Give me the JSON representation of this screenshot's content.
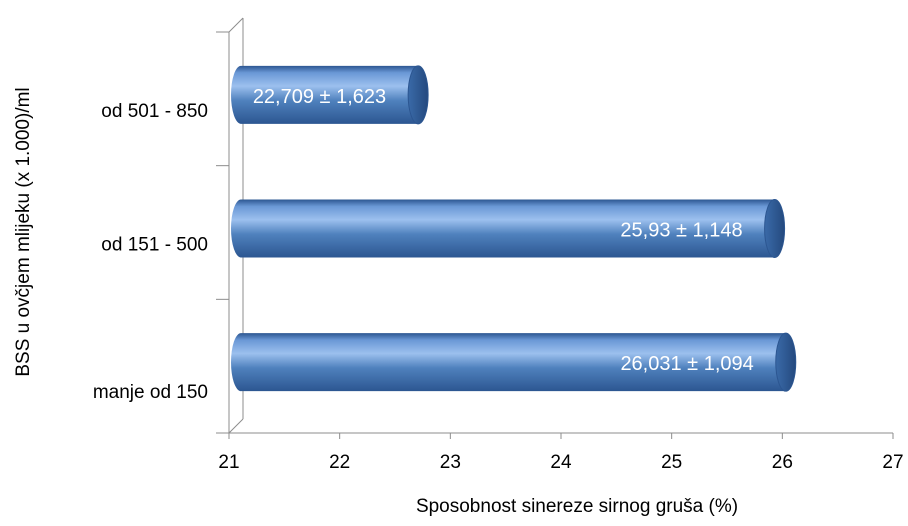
{
  "chart_data": {
    "type": "bar",
    "orientation": "horizontal",
    "style": "3d-cylinder",
    "categories": [
      "manje od 150",
      "od 151 - 500",
      "od 501 - 850"
    ],
    "values": [
      26.031,
      25.93,
      22.709
    ],
    "data_labels": [
      "26,031 ± 1,094",
      "25,93 ± 1,148",
      "22,709 ± 1,623"
    ],
    "xlim": [
      21,
      27
    ],
    "x_ticks": [
      "21",
      "22",
      "23",
      "24",
      "25",
      "26",
      "27"
    ],
    "xlabel": "Sposobnost sinereze sirnog gruša (%)",
    "ylabel": "BSS u ovčjem mlijeku (x 1.000)/ml",
    "colors": {
      "bar_top": "#9cc0ee",
      "bar_mid": "#4f81bd",
      "bar_bottom": "#2c5691",
      "bar_end": "#3f6ea8",
      "label": "#ffffff"
    }
  }
}
